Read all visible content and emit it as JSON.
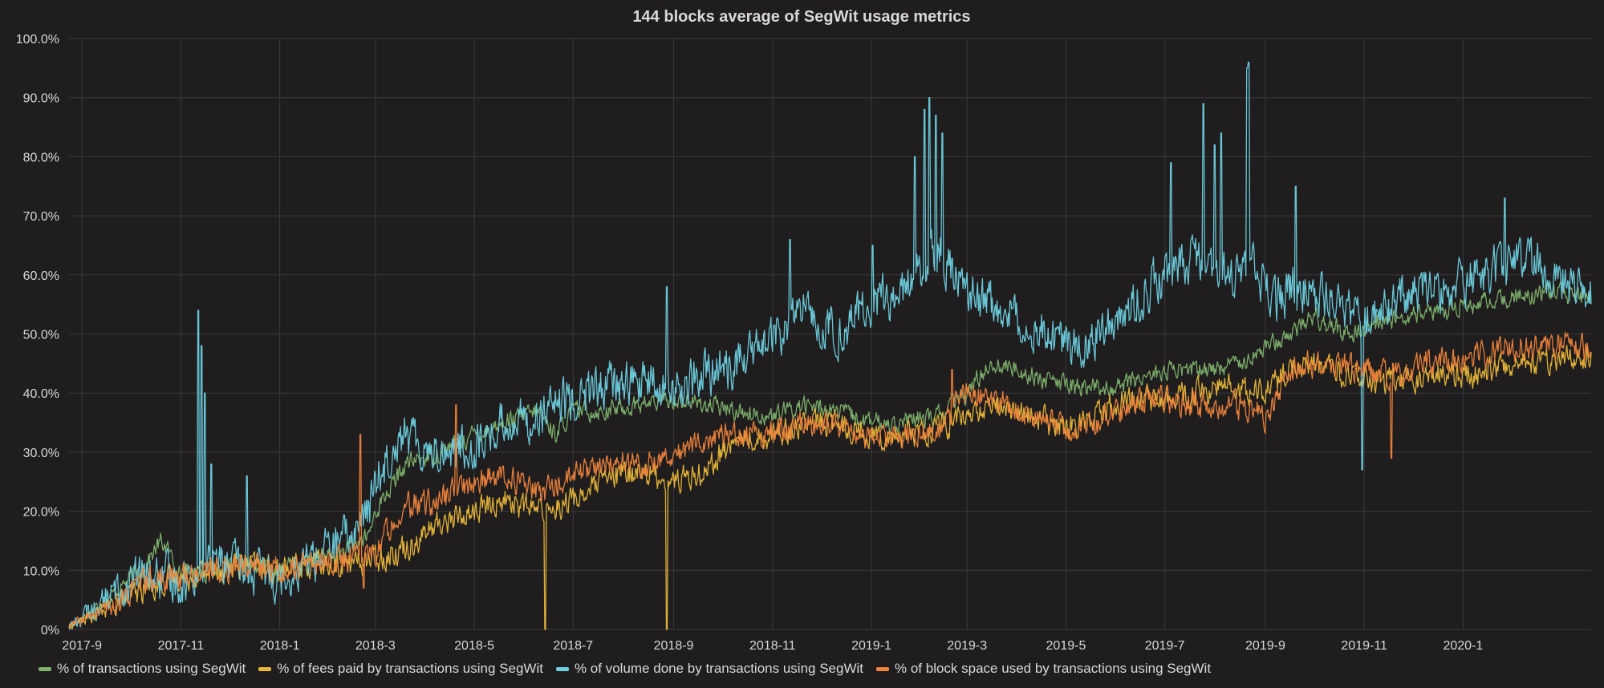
{
  "chart_data": {
    "type": "line",
    "title": "144 blocks average of SegWit usage metrics",
    "xlabel": "",
    "ylabel": "",
    "x_range": [
      "2017-08-24",
      "2020-03-20"
    ],
    "ylim": [
      0,
      100
    ],
    "y_ticks": [
      {
        "value": 0,
        "label": "0%"
      },
      {
        "value": 10,
        "label": "10.0%"
      },
      {
        "value": 20,
        "label": "20.0%"
      },
      {
        "value": 30,
        "label": "30.0%"
      },
      {
        "value": 40,
        "label": "40.0%"
      },
      {
        "value": 50,
        "label": "50.0%"
      },
      {
        "value": 60,
        "label": "60.0%"
      },
      {
        "value": 70,
        "label": "70.0%"
      },
      {
        "value": 80,
        "label": "80.0%"
      },
      {
        "value": 90,
        "label": "90.0%"
      },
      {
        "value": 100,
        "label": "100.0%"
      }
    ],
    "x_ticks": [
      {
        "date": "2017-09-01",
        "label": "2017-9"
      },
      {
        "date": "2017-11-01",
        "label": "2017-11"
      },
      {
        "date": "2018-01-01",
        "label": "2018-1"
      },
      {
        "date": "2018-03-01",
        "label": "2018-3"
      },
      {
        "date": "2018-05-01",
        "label": "2018-5"
      },
      {
        "date": "2018-07-01",
        "label": "2018-7"
      },
      {
        "date": "2018-09-01",
        "label": "2018-9"
      },
      {
        "date": "2018-11-01",
        "label": "2018-11"
      },
      {
        "date": "2019-01-01",
        "label": "2019-1"
      },
      {
        "date": "2019-03-01",
        "label": "2019-3"
      },
      {
        "date": "2019-05-01",
        "label": "2019-5"
      },
      {
        "date": "2019-07-01",
        "label": "2019-7"
      },
      {
        "date": "2019-09-01",
        "label": "2019-9"
      },
      {
        "date": "2019-11-01",
        "label": "2019-11"
      },
      {
        "date": "2020-01-01",
        "label": "2020-1"
      }
    ],
    "grid": true,
    "legend_position": "bottom-left",
    "series": [
      {
        "name": "% of transactions using SegWit",
        "color": "#7eb26d",
        "points": [
          [
            "2017-08-24",
            0.5
          ],
          [
            "2017-09-01",
            2
          ],
          [
            "2017-09-20",
            6
          ],
          [
            "2017-10-10",
            11
          ],
          [
            "2017-10-20",
            15
          ],
          [
            "2017-10-25",
            13
          ],
          [
            "2017-11-01",
            9
          ],
          [
            "2017-11-20",
            10
          ],
          [
            "2017-12-10",
            11
          ],
          [
            "2018-01-01",
            10
          ],
          [
            "2018-01-20",
            12
          ],
          [
            "2018-02-10",
            13
          ],
          [
            "2018-02-25",
            16
          ],
          [
            "2018-03-01",
            20
          ],
          [
            "2018-03-20",
            28
          ],
          [
            "2018-04-10",
            30
          ],
          [
            "2018-05-01",
            33
          ],
          [
            "2018-05-20",
            35
          ],
          [
            "2018-06-10",
            37
          ],
          [
            "2018-06-20",
            33
          ],
          [
            "2018-07-01",
            37
          ],
          [
            "2018-07-20",
            37
          ],
          [
            "2018-08-10",
            38
          ],
          [
            "2018-09-01",
            39
          ],
          [
            "2018-09-20",
            38
          ],
          [
            "2018-10-10",
            37
          ],
          [
            "2018-11-01",
            36
          ],
          [
            "2018-11-20",
            38
          ],
          [
            "2018-12-10",
            37
          ],
          [
            "2019-01-01",
            35
          ],
          [
            "2019-01-20",
            35
          ],
          [
            "2019-02-10",
            36
          ],
          [
            "2019-03-01",
            40
          ],
          [
            "2019-03-15",
            45
          ],
          [
            "2019-04-01",
            44
          ],
          [
            "2019-04-20",
            42
          ],
          [
            "2019-05-10",
            41
          ],
          [
            "2019-06-01",
            41
          ],
          [
            "2019-06-20",
            43
          ],
          [
            "2019-07-10",
            44
          ],
          [
            "2019-08-01",
            44
          ],
          [
            "2019-08-20",
            46
          ],
          [
            "2019-09-10",
            49
          ],
          [
            "2019-10-01",
            53
          ],
          [
            "2019-10-20",
            50
          ],
          [
            "2019-11-10",
            52
          ],
          [
            "2019-12-01",
            53
          ],
          [
            "2019-12-20",
            54
          ],
          [
            "2020-01-10",
            55
          ],
          [
            "2020-02-01",
            56
          ],
          [
            "2020-02-20",
            57
          ],
          [
            "2020-03-20",
            56
          ]
        ],
        "noise": 2.5,
        "spikes": []
      },
      {
        "name": "% of fees paid by transactions using SegWit",
        "color": "#eab839",
        "points": [
          [
            "2017-08-24",
            0.5
          ],
          [
            "2017-09-01",
            1.5
          ],
          [
            "2017-09-20",
            4
          ],
          [
            "2017-10-10",
            7
          ],
          [
            "2017-11-01",
            9
          ],
          [
            "2017-11-20",
            10
          ],
          [
            "2017-12-10",
            11
          ],
          [
            "2018-01-01",
            10
          ],
          [
            "2018-01-20",
            11
          ],
          [
            "2018-02-10",
            11
          ],
          [
            "2018-03-01",
            12
          ],
          [
            "2018-03-20",
            14
          ],
          [
            "2018-04-10",
            18
          ],
          [
            "2018-05-01",
            20
          ],
          [
            "2018-05-20",
            22
          ],
          [
            "2018-06-10",
            20
          ],
          [
            "2018-07-01",
            22
          ],
          [
            "2018-07-20",
            25
          ],
          [
            "2018-08-10",
            27
          ],
          [
            "2018-09-01",
            25
          ],
          [
            "2018-09-20",
            27
          ],
          [
            "2018-10-10",
            32
          ],
          [
            "2018-11-01",
            33
          ],
          [
            "2018-11-20",
            35
          ],
          [
            "2018-12-10",
            35
          ],
          [
            "2019-01-01",
            33
          ],
          [
            "2019-01-20",
            33
          ],
          [
            "2019-02-10",
            34
          ],
          [
            "2019-03-01",
            36
          ],
          [
            "2019-03-20",
            38
          ],
          [
            "2019-04-10",
            36
          ],
          [
            "2019-05-01",
            34
          ],
          [
            "2019-05-20",
            37
          ],
          [
            "2019-06-10",
            39
          ],
          [
            "2019-07-01",
            39
          ],
          [
            "2019-07-20",
            40
          ],
          [
            "2019-08-10",
            41
          ],
          [
            "2019-09-01",
            40
          ],
          [
            "2019-09-20",
            45
          ],
          [
            "2019-10-10",
            44
          ],
          [
            "2019-11-01",
            42
          ],
          [
            "2019-11-20",
            42
          ],
          [
            "2019-12-10",
            43
          ],
          [
            "2020-01-01",
            43
          ],
          [
            "2020-01-20",
            44
          ],
          [
            "2020-02-10",
            45
          ],
          [
            "2020-03-01",
            46
          ],
          [
            "2020-03-20",
            46
          ]
        ],
        "noise": 3.5,
        "spikes": [
          [
            "2018-06-14",
            -10
          ],
          [
            "2018-08-28",
            -8
          ]
        ]
      },
      {
        "name": "% of volume done by transactions using SegWit",
        "color": "#6ed0e0",
        "points": [
          [
            "2017-08-24",
            0.5
          ],
          [
            "2017-09-01",
            2
          ],
          [
            "2017-09-20",
            6
          ],
          [
            "2017-10-10",
            9
          ],
          [
            "2017-11-01",
            8
          ],
          [
            "2017-11-20",
            12
          ],
          [
            "2017-12-10",
            10
          ],
          [
            "2018-01-01",
            9
          ],
          [
            "2018-01-20",
            12
          ],
          [
            "2018-02-10",
            15
          ],
          [
            "2018-02-25",
            20
          ],
          [
            "2018-03-01",
            25
          ],
          [
            "2018-03-15",
            33
          ],
          [
            "2018-04-10",
            30
          ],
          [
            "2018-05-01",
            31
          ],
          [
            "2018-05-20",
            35
          ],
          [
            "2018-06-10",
            36
          ],
          [
            "2018-07-01",
            39
          ],
          [
            "2018-07-20",
            41
          ],
          [
            "2018-08-10",
            42
          ],
          [
            "2018-09-01",
            40
          ],
          [
            "2018-09-20",
            43
          ],
          [
            "2018-10-10",
            45
          ],
          [
            "2018-11-01",
            49
          ],
          [
            "2018-11-20",
            54
          ],
          [
            "2018-12-10",
            50
          ],
          [
            "2019-01-01",
            55
          ],
          [
            "2019-01-20",
            57
          ],
          [
            "2019-02-10",
            65
          ],
          [
            "2019-03-01",
            56
          ],
          [
            "2019-03-20",
            55
          ],
          [
            "2019-04-10",
            52
          ],
          [
            "2019-05-01",
            48
          ],
          [
            "2019-05-20",
            50
          ],
          [
            "2019-06-10",
            55
          ],
          [
            "2019-07-01",
            60
          ],
          [
            "2019-07-20",
            63
          ],
          [
            "2019-08-10",
            60
          ],
          [
            "2019-08-25",
            62
          ],
          [
            "2019-09-05",
            55
          ],
          [
            "2019-09-20",
            58
          ],
          [
            "2019-10-10",
            56
          ],
          [
            "2019-11-01",
            52
          ],
          [
            "2019-11-20",
            56
          ],
          [
            "2019-12-10",
            57
          ],
          [
            "2020-01-01",
            59
          ],
          [
            "2020-01-20",
            61
          ],
          [
            "2020-02-10",
            62
          ],
          [
            "2020-03-01",
            60
          ],
          [
            "2020-03-20",
            56
          ]
        ],
        "noise": 6,
        "spikes": [
          [
            "2017-11-12",
            54
          ],
          [
            "2017-11-14",
            48
          ],
          [
            "2017-11-16",
            40
          ],
          [
            "2017-11-20",
            28
          ],
          [
            "2017-12-12",
            26
          ],
          [
            "2018-08-28",
            58
          ],
          [
            "2018-11-12",
            66
          ],
          [
            "2019-01-02",
            65
          ],
          [
            "2019-01-28",
            80
          ],
          [
            "2019-02-03",
            88
          ],
          [
            "2019-02-06",
            90
          ],
          [
            "2019-02-10",
            87
          ],
          [
            "2019-02-14",
            84
          ],
          [
            "2019-07-05",
            79
          ],
          [
            "2019-07-25",
            89
          ],
          [
            "2019-08-01",
            82
          ],
          [
            "2019-08-05",
            84
          ],
          [
            "2019-08-21",
            95
          ],
          [
            "2019-08-22",
            96
          ],
          [
            "2019-09-20",
            75
          ],
          [
            "2019-10-31",
            27
          ],
          [
            "2020-01-27",
            73
          ]
        ]
      },
      {
        "name": "% of block space used by transactions using SegWit",
        "color": "#ef843c",
        "points": [
          [
            "2017-08-24",
            0.5
          ],
          [
            "2017-09-01",
            1.5
          ],
          [
            "2017-09-20",
            4
          ],
          [
            "2017-10-10",
            8
          ],
          [
            "2017-11-01",
            9
          ],
          [
            "2017-11-20",
            10
          ],
          [
            "2017-12-10",
            11
          ],
          [
            "2018-01-01",
            10
          ],
          [
            "2018-01-20",
            11
          ],
          [
            "2018-02-10",
            12
          ],
          [
            "2018-03-01",
            13
          ],
          [
            "2018-03-15",
            20
          ],
          [
            "2018-04-10",
            22
          ],
          [
            "2018-05-01",
            25
          ],
          [
            "2018-05-20",
            26
          ],
          [
            "2018-06-10",
            23
          ],
          [
            "2018-07-01",
            26
          ],
          [
            "2018-07-20",
            28
          ],
          [
            "2018-08-10",
            28
          ],
          [
            "2018-09-01",
            30
          ],
          [
            "2018-09-20",
            32
          ],
          [
            "2018-10-10",
            33
          ],
          [
            "2018-11-01",
            33
          ],
          [
            "2018-11-20",
            35
          ],
          [
            "2018-12-10",
            34
          ],
          [
            "2019-01-01",
            32
          ],
          [
            "2019-01-20",
            33
          ],
          [
            "2019-02-10",
            33
          ],
          [
            "2019-03-01",
            40
          ],
          [
            "2019-03-20",
            39
          ],
          [
            "2019-04-10",
            36
          ],
          [
            "2019-05-01",
            34
          ],
          [
            "2019-05-20",
            35
          ],
          [
            "2019-06-10",
            38
          ],
          [
            "2019-07-01",
            39
          ],
          [
            "2019-07-20",
            38
          ],
          [
            "2019-08-10",
            38
          ],
          [
            "2019-09-01",
            36
          ],
          [
            "2019-09-20",
            45
          ],
          [
            "2019-10-10",
            45
          ],
          [
            "2019-11-01",
            44
          ],
          [
            "2019-11-20",
            43
          ],
          [
            "2019-12-10",
            45
          ],
          [
            "2020-01-01",
            46
          ],
          [
            "2020-01-20",
            47
          ],
          [
            "2020-02-10",
            48
          ],
          [
            "2020-03-01",
            48
          ],
          [
            "2020-03-20",
            47
          ]
        ],
        "noise": 3.5,
        "spikes": [
          [
            "2018-02-20",
            33
          ],
          [
            "2018-02-22",
            7
          ],
          [
            "2018-04-20",
            38
          ],
          [
            "2019-02-20",
            44
          ],
          [
            "2019-11-18",
            29
          ]
        ]
      }
    ]
  }
}
